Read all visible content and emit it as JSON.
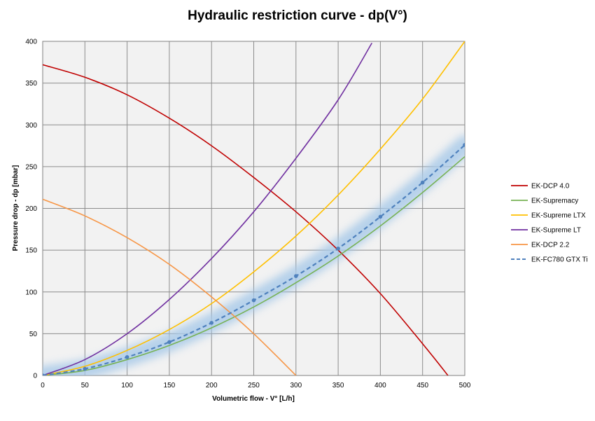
{
  "chart_data": {
    "type": "line",
    "title": "Hydraulic restriction curve - dp(V°)",
    "xlabel": "Volumetric flow - V° [L/h]",
    "ylabel": "Pressure drop - dp [mbar]",
    "xlim": [
      0,
      500
    ],
    "ylim": [
      0,
      400
    ],
    "xticks": [
      0,
      50,
      100,
      150,
      200,
      250,
      300,
      350,
      400,
      450,
      500
    ],
    "yticks": [
      0,
      50,
      100,
      150,
      200,
      250,
      300,
      350,
      400
    ],
    "grid": true,
    "legend_position": "right",
    "series": [
      {
        "name": "EK-DCP 4.0",
        "color": "#c00000",
        "dashed": false,
        "markers": false,
        "x": [
          0,
          50,
          100,
          150,
          200,
          250,
          300,
          350,
          400,
          450,
          480
        ],
        "y": [
          372,
          357,
          336,
          308,
          275,
          237,
          196,
          150,
          98,
          38,
          0
        ]
      },
      {
        "name": "EK-Supremacy",
        "color": "#77b255",
        "dashed": false,
        "markers": false,
        "x": [
          0,
          50,
          100,
          150,
          200,
          250,
          300,
          350,
          400,
          450,
          500
        ],
        "y": [
          0,
          6,
          19,
          36,
          57,
          82,
          111,
          143,
          179,
          219,
          262
        ]
      },
      {
        "name": "EK-Supreme LTX",
        "color": "#ffc000",
        "dashed": false,
        "markers": false,
        "x": [
          0,
          50,
          100,
          150,
          200,
          250,
          300,
          350,
          400,
          450,
          500
        ],
        "y": [
          0,
          11,
          30,
          55,
          86,
          124,
          167,
          216,
          271,
          331,
          400
        ]
      },
      {
        "name": "EK-Supreme LT",
        "color": "#7030a0",
        "dashed": false,
        "markers": false,
        "x": [
          0,
          50,
          100,
          150,
          200,
          250,
          300,
          350,
          390
        ],
        "y": [
          0,
          19,
          50,
          91,
          140,
          196,
          260,
          330,
          398
        ]
      },
      {
        "name": "EK-DCP 2.2",
        "color": "#f79646",
        "dashed": false,
        "markers": false,
        "x": [
          0,
          50,
          100,
          150,
          200,
          250,
          300
        ],
        "y": [
          211,
          191,
          165,
          133,
          94,
          50,
          0
        ]
      },
      {
        "name": "EK-FC780 GTX Ti",
        "color": "#4f81bd",
        "dashed": true,
        "markers": true,
        "x": [
          0,
          50,
          100,
          150,
          200,
          250,
          300,
          350,
          400,
          450,
          500
        ],
        "y": [
          0,
          8,
          22,
          40,
          63,
          90,
          119,
          152,
          190,
          231,
          276
        ]
      }
    ]
  }
}
